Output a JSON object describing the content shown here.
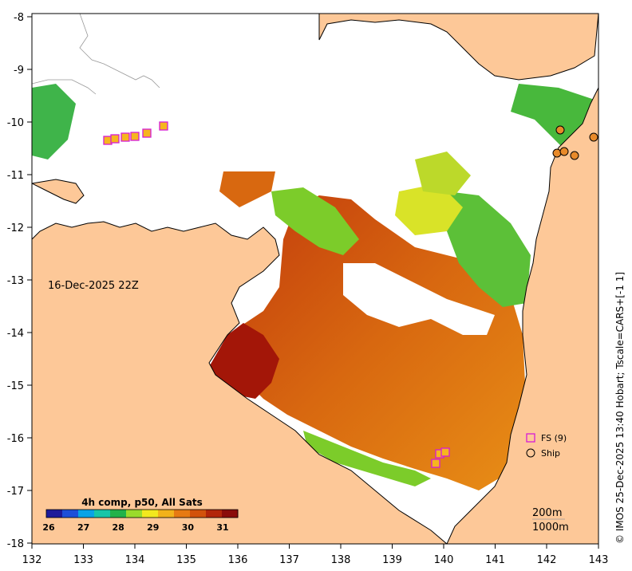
{
  "map": {
    "x_ticks": [
      "132",
      "133",
      "134",
      "135",
      "136",
      "137",
      "138",
      "139",
      "140",
      "141",
      "142",
      "143"
    ],
    "y_ticks": [
      "-8",
      "-9",
      "-10",
      "-11",
      "-12",
      "-13",
      "-14",
      "-15",
      "-16",
      "-17",
      "-18"
    ],
    "timestamp": "16-Dec-2025 22Z",
    "side_note": "© IMOS 25-Dec-2025 13:40 Hobart; Tscale=CARS+[-1 1]",
    "colorbar": {
      "title": "4h comp, p50, All Sats",
      "labels": [
        "26",
        "27",
        "28",
        "29",
        "30",
        "31"
      ],
      "colors": [
        "#1d1a9a",
        "#1e4fd8",
        "#0aa3e6",
        "#18c6a8",
        "#22b24a",
        "#9adb2c",
        "#f2e81e",
        "#f2b21a",
        "#e67a12",
        "#d2520c",
        "#b2260a",
        "#8a0c0a"
      ]
    },
    "legend": {
      "fs_label": "FS (9)",
      "ship_label": "Ship"
    },
    "depth": {
      "contour_200": "200m",
      "contour_1000": "1000m"
    },
    "colors": {
      "land": "#fdc898",
      "ocean": "#ffffff",
      "coast": "#000000",
      "fs_marker_edge": "#d61bd6",
      "fs_marker_fill": "#f6b61e",
      "ship_marker_fill": "#e88a2a"
    }
  }
}
